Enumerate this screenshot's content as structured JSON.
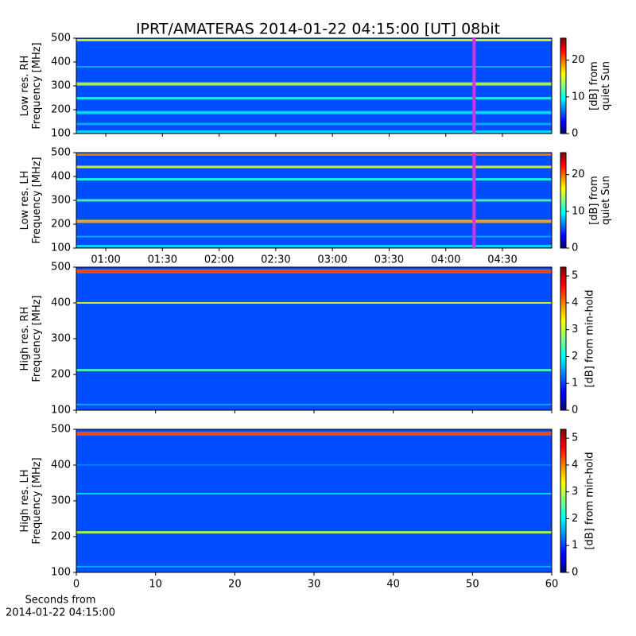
{
  "chart_data": [
    {
      "type": "spectrogram",
      "title": "IPRT/AMATERAS 2014-01-22 04:15:00 [UT]   08bit",
      "ylabel": [
        "Low res. RH",
        "Frequency [MHz]"
      ],
      "ylim": [
        100,
        500
      ],
      "yticks": [
        100,
        200,
        300,
        400,
        500
      ],
      "colormap": "jet",
      "colorbar": {
        "label": [
          "[dB] from",
          "quiet Sun"
        ],
        "lim": [
          0,
          26
        ],
        "ticks": [
          0,
          10,
          20
        ]
      },
      "marker": 255,
      "marker_color": "#d633e0"
    },
    {
      "type": "spectrogram",
      "ylabel": [
        "Low res. LH",
        "Frequency [MHz]"
      ],
      "ylim": [
        100,
        500
      ],
      "yticks": [
        100,
        200,
        300,
        400,
        500
      ],
      "xlim": [
        44.4,
        296.1
      ],
      "xticks": [
        {
          "value": 60,
          "label": "01:00"
        },
        {
          "value": 90,
          "label": "01:30"
        },
        {
          "value": 120,
          "label": "02:00"
        },
        {
          "value": 150,
          "label": "02:30"
        },
        {
          "value": 180,
          "label": "03:00"
        },
        {
          "value": 210,
          "label": "03:30"
        },
        {
          "value": 240,
          "label": "04:00"
        },
        {
          "value": 270,
          "label": "04:30"
        }
      ],
      "colormap": "jet",
      "colorbar": {
        "label": [
          "[dB] from",
          "quiet Sun"
        ],
        "lim": [
          0,
          26
        ],
        "ticks": [
          0,
          10,
          20
        ]
      },
      "marker": 255,
      "marker_color": "#d633e0"
    },
    {
      "type": "spectrogram",
      "ylabel": [
        "High res. RH",
        "Frequency [MHz]"
      ],
      "ylim": [
        100,
        500
      ],
      "yticks": [
        100,
        200,
        300,
        400,
        500
      ],
      "colormap": "jet",
      "colorbar": {
        "label": [
          "[dB] from min-hold"
        ],
        "lim": [
          0,
          5.33
        ],
        "ticks": [
          0,
          1,
          2,
          3,
          4,
          5
        ]
      }
    },
    {
      "type": "spectrogram",
      "ylabel": [
        "High res. LH",
        "Frequency [MHz]"
      ],
      "ylim": [
        100,
        500
      ],
      "yticks": [
        100,
        200,
        300,
        400,
        500
      ],
      "xlim": [
        0,
        60
      ],
      "xticks": [
        0,
        10,
        20,
        30,
        40,
        50,
        60
      ],
      "xlabel": [
        "Seconds from",
        "2014-01-22 04:15:00"
      ],
      "colormap": "jet",
      "colorbar": {
        "label": [
          "[dB] from min-hold"
        ],
        "lim": [
          0,
          5.33
        ],
        "ticks": [
          0,
          1,
          2,
          3,
          4,
          5
        ]
      }
    }
  ]
}
